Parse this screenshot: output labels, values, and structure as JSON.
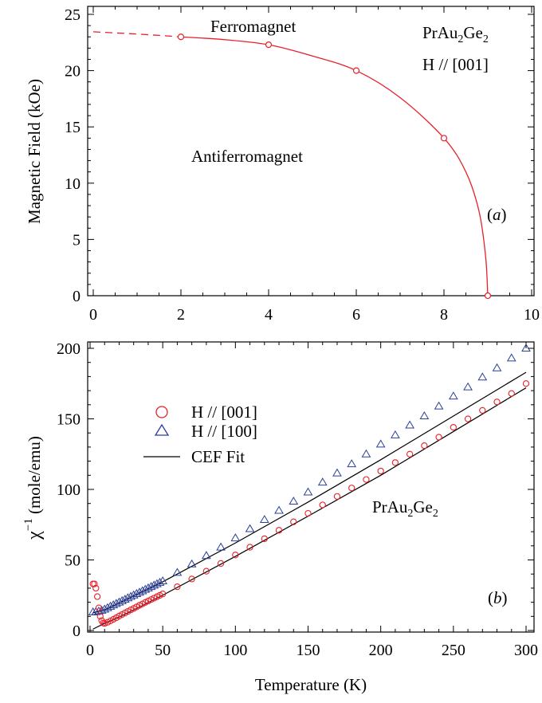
{
  "chart_data": [
    {
      "type": "line",
      "panel_label": "(a)",
      "xlabel": "",
      "ylabel": "Magnetic Field (kOe)",
      "xlim": [
        0,
        10
      ],
      "ylim": [
        0,
        26
      ],
      "xticks": [
        "0",
        "2",
        "4",
        "6",
        "8",
        "10"
      ],
      "yticks": [
        "0",
        "5",
        "10",
        "15",
        "20",
        "25"
      ],
      "annotations": {
        "ferro": "Ferromagnet",
        "antiferro": "Antiferromagnet",
        "compound": "PrAu2Ge2",
        "field_dir": "H // [001]"
      },
      "colors": {
        "phase_line": "#e8202a"
      },
      "series": [
        {
          "style": "markers",
          "marker": "open-circle",
          "points": [
            [
              2,
              23.0
            ],
            [
              4,
              22.3
            ],
            [
              6,
              20.0
            ],
            [
              8,
              14.0
            ],
            [
              9,
              0
            ]
          ]
        },
        {
          "style": "dashed-line",
          "points": [
            [
              0,
              23.45
            ],
            [
              0.5,
              23.35
            ],
            [
              1,
              23.25
            ],
            [
              1.5,
              23.13
            ],
            [
              2,
              23.0
            ]
          ]
        },
        {
          "style": "solid-line",
          "points": [
            [
              2,
              23.0
            ],
            [
              3,
              22.75
            ],
            [
              4,
              22.3
            ],
            [
              5,
              21.3
            ],
            [
              6,
              20.0
            ],
            [
              7,
              17.6
            ],
            [
              8,
              14.0
            ],
            [
              8.5,
              11.0
            ],
            [
              8.8,
              7.5
            ],
            [
              8.95,
              3.5
            ],
            [
              9,
              0
            ]
          ]
        }
      ]
    },
    {
      "type": "scatter",
      "panel_label": "(b)",
      "xlabel": "Temperature (K)",
      "ylabel": "χ−1 (mole/emu)",
      "ylabel_main": "χ",
      "ylabel_sup": "−1",
      "ylabel_rest": " (mole/emu)",
      "xlim": [
        0,
        305
      ],
      "ylim": [
        0,
        205
      ],
      "xticks": [
        "0",
        "50",
        "100",
        "150",
        "200",
        "250",
        "300"
      ],
      "yticks": [
        "0",
        "50",
        "100",
        "150",
        "200"
      ],
      "annotations": {
        "compound": "PrAu2Ge2"
      },
      "legend": [
        "H // [001]",
        "H // [100]",
        "CEF Fit"
      ],
      "colors": {
        "h001": "#e8202a",
        "h100": "#2a3f9a",
        "fit": "#000000"
      },
      "series": [
        {
          "name": "H // [001]",
          "marker": "open-circle",
          "x": [
            2,
            3,
            4,
            5,
            6,
            7,
            8,
            9,
            10,
            12,
            14,
            16,
            18,
            20,
            22,
            24,
            26,
            28,
            30,
            32,
            34,
            36,
            38,
            40,
            42,
            44,
            46,
            48,
            50,
            60,
            70,
            80,
            90,
            100,
            110,
            120,
            130,
            140,
            150,
            160,
            170,
            180,
            190,
            200,
            210,
            220,
            230,
            240,
            250,
            260,
            270,
            280,
            290,
            300
          ],
          "y": [
            33,
            33,
            30,
            24,
            16,
            10,
            7,
            5.3,
            5,
            5.8,
            6.8,
            7.9,
            9.0,
            10.2,
            11.3,
            12.4,
            13.5,
            14.6,
            15.6,
            16.7,
            17.8,
            18.8,
            19.9,
            20.9,
            21.9,
            22.9,
            23.9,
            24.9,
            25.9,
            31,
            36.5,
            42,
            47.5,
            53.5,
            59,
            65,
            71,
            77,
            83,
            89,
            95,
            101,
            107,
            113,
            119,
            125,
            131,
            137,
            144,
            150,
            156,
            162,
            168,
            175
          ]
        },
        {
          "name": "H // [100]",
          "marker": "open-triangle",
          "x": [
            2,
            4,
            6,
            8,
            10,
            12,
            14,
            16,
            18,
            20,
            22,
            24,
            26,
            28,
            30,
            32,
            34,
            36,
            38,
            40,
            42,
            44,
            46,
            48,
            50,
            60,
            70,
            80,
            90,
            100,
            110,
            120,
            130,
            140,
            150,
            160,
            170,
            180,
            190,
            200,
            210,
            220,
            230,
            240,
            250,
            260,
            270,
            280,
            290,
            300
          ],
          "y": [
            13,
            13.2,
            13.6,
            14.2,
            15,
            16,
            17,
            18,
            19,
            20,
            21,
            22,
            23,
            24,
            25,
            26,
            27,
            28,
            29,
            30,
            31,
            32,
            33,
            34,
            35,
            41,
            47,
            53,
            59,
            65.5,
            72,
            78.5,
            85,
            91.5,
            98,
            105,
            111.5,
            118,
            125,
            132,
            138.5,
            145.5,
            152,
            159,
            166,
            172.5,
            179.5,
            186,
            193,
            200
          ]
        },
        {
          "name": "CEF Fit",
          "style": "line",
          "curves": [
            {
              "x": [
                2,
                10,
                20,
                30,
                50,
                100,
                150,
                200,
                250,
                300
              ],
              "y": [
                1,
                5,
                9.5,
                14.5,
                25,
                52.5,
                81,
                110,
                141,
                172
              ]
            },
            {
              "x": [
                2,
                10,
                20,
                30,
                50,
                100,
                150,
                200,
                250,
                300
              ],
              "y": [
                12.5,
                14.5,
                19.5,
                24.5,
                34.5,
                62,
                91,
                121,
                152,
                183
              ]
            }
          ]
        }
      ]
    }
  ]
}
